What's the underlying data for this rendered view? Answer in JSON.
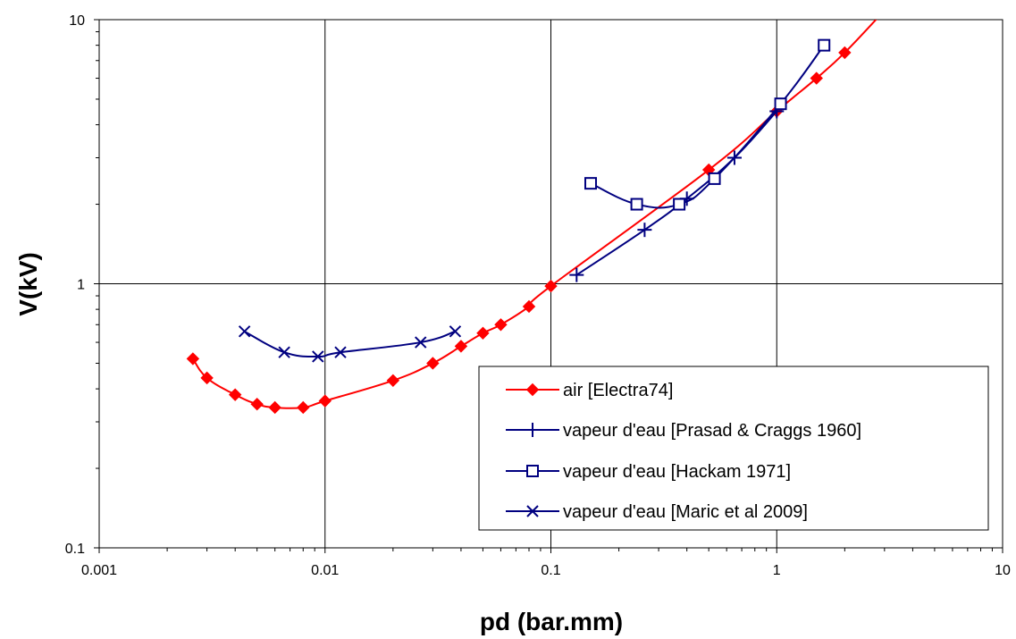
{
  "chart_data": {
    "type": "line",
    "xlabel": "pd (bar.mm)",
    "ylabel": "V(kV)",
    "x_scale": "log",
    "y_scale": "log",
    "xlim": [
      0.001,
      10
    ],
    "ylim": [
      0.1,
      10
    ],
    "x_ticks": [
      "0.001",
      "0.01",
      "0.1",
      "1",
      "10"
    ],
    "y_ticks": [
      "0.1",
      "1",
      "10"
    ],
    "grid": true,
    "legend_position": "bottom-right",
    "series": [
      {
        "name": "air [Electra74]",
        "color": "#ff0000",
        "marker": "diamond",
        "x": [
          0.0026,
          0.003,
          0.004,
          0.005,
          0.006,
          0.008,
          0.01,
          0.02,
          0.03,
          0.04,
          0.05,
          0.06,
          0.08,
          0.1,
          0.5,
          1.0,
          1.5,
          2.0
        ],
        "y": [
          0.52,
          0.44,
          0.38,
          0.35,
          0.34,
          0.34,
          0.36,
          0.43,
          0.5,
          0.58,
          0.65,
          0.7,
          0.82,
          0.98,
          2.7,
          4.5,
          6.0,
          7.5
        ],
        "extension": {
          "x": [
            2.0,
            2.9
          ],
          "y": [
            7.5,
            10.5
          ]
        }
      },
      {
        "name": "vapeur d'eau [Prasad & Craggs 1960]",
        "color": "#000080",
        "marker": "plus",
        "x": [
          0.13,
          0.26,
          0.4,
          0.65,
          1.0
        ],
        "y": [
          1.08,
          1.6,
          2.1,
          3.0,
          4.5
        ]
      },
      {
        "name": "vapeur d'eau [Hackam 1971]",
        "color": "#000080",
        "marker": "square",
        "x": [
          0.15,
          0.24,
          0.37,
          0.53,
          1.04,
          1.62
        ],
        "y": [
          2.4,
          2.0,
          2.0,
          2.5,
          4.8,
          8.0
        ]
      },
      {
        "name": "vapeur d'eau [Maric et al 2009]",
        "color": "#000080",
        "marker": "x",
        "x": [
          0.0044,
          0.0066,
          0.0093,
          0.0117,
          0.0265,
          0.0377
        ],
        "y": [
          0.66,
          0.55,
          0.53,
          0.55,
          0.6,
          0.66
        ]
      }
    ]
  }
}
